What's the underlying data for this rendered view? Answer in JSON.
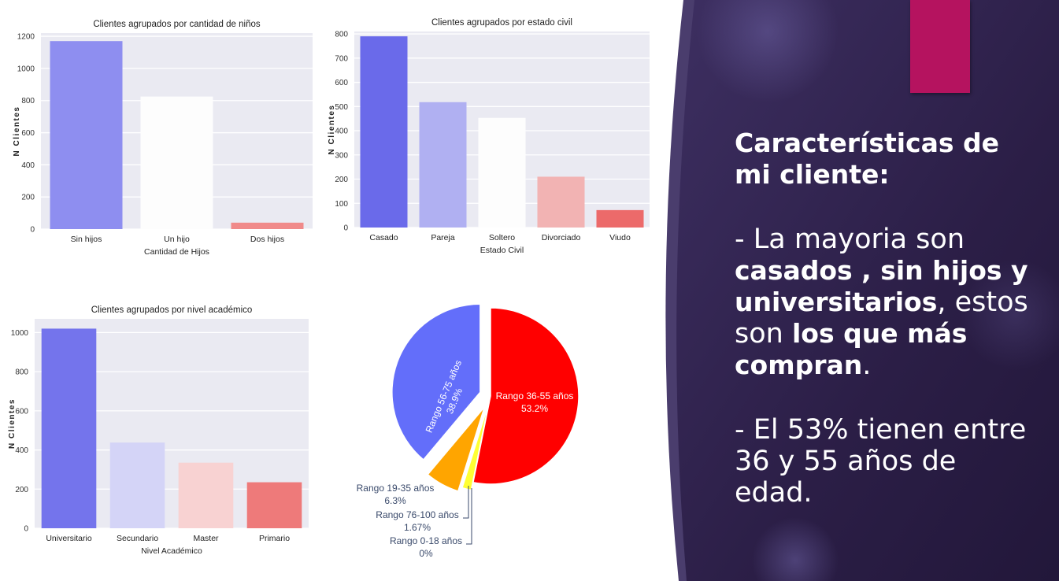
{
  "colors": {
    "panel_dark": "#2a1d43",
    "panel_mid": "#3b2d5e",
    "accent": "#b5135f",
    "plot_bg": "#eaeaf2",
    "grid": "#ffffff"
  },
  "slide_text": {
    "heading": "Características de mi cliente:",
    "p1_a": "- La mayoria son ",
    "p1_b": "casados , sin hijos y universitarios",
    "p1_c": ", estos son ",
    "p1_d": "los que más compran",
    "p1_e": ".",
    "p2": "- El 53% tienen entre 36 y 55 años de edad."
  },
  "chart_data": [
    {
      "type": "bar",
      "title": "Clientes agrupados por cantidad de niños",
      "xlabel": "Cantidad de Hijos",
      "ylabel": "N Clientes",
      "categories": [
        "Sin hijos",
        "Un hijo",
        "Dos hijos"
      ],
      "values": [
        1170,
        825,
        40
      ],
      "colors": [
        "#8e8ef0",
        "#fdfdfd",
        "#f08a8a"
      ],
      "ylim": [
        0,
        1220
      ],
      "yticks": [
        0,
        200,
        400,
        600,
        800,
        1000,
        1200
      ],
      "grid": true
    },
    {
      "type": "bar",
      "title": "Clientes agrupados por estado civil",
      "xlabel": "Estado Civil",
      "ylabel": "N Clientes",
      "categories": [
        "Casado",
        "Pareja",
        "Soltero",
        "Divorciado",
        "Viudo"
      ],
      "values": [
        790,
        518,
        453,
        210,
        72
      ],
      "colors": [
        "#6a6aea",
        "#b0b0f2",
        "#fdfdfd",
        "#f2b3b3",
        "#ec6a6a"
      ],
      "ylim": [
        0,
        810
      ],
      "yticks": [
        0,
        100,
        200,
        300,
        400,
        500,
        600,
        700,
        800
      ],
      "grid": true
    },
    {
      "type": "bar",
      "title": "Clientes agrupados por nivel académico",
      "xlabel": "Nivel Académico",
      "ylabel": "N Clientes",
      "categories": [
        "Universitario",
        "Secundario",
        "Master",
        "Primario"
      ],
      "values": [
        1020,
        438,
        335,
        235
      ],
      "colors": [
        "#7474ec",
        "#d4d4f7",
        "#f8d2d2",
        "#ee7a7a"
      ],
      "ylim": [
        0,
        1070
      ],
      "yticks": [
        0,
        200,
        400,
        600,
        800,
        1000
      ],
      "grid": true
    },
    {
      "type": "pie",
      "slices": [
        {
          "label": "Rango 36-55 años",
          "pct_text": "53.2%",
          "value": 53.2,
          "color": "#ff0000"
        },
        {
          "label": "Rango 76-100 años",
          "pct_text": "1.67%",
          "value": 1.67,
          "color": "#ffff33"
        },
        {
          "label": "Rango 19-35 años",
          "pct_text": "6.3%",
          "value": 6.3,
          "color": "#ffa500"
        },
        {
          "label": "Rango 56-75 años",
          "pct_text": "38.9%",
          "value": 38.9,
          "color": "#636efa"
        },
        {
          "label": "Rango 0-18 años",
          "pct_text": "0%",
          "value": 0,
          "color": "#00cc96"
        }
      ]
    }
  ]
}
